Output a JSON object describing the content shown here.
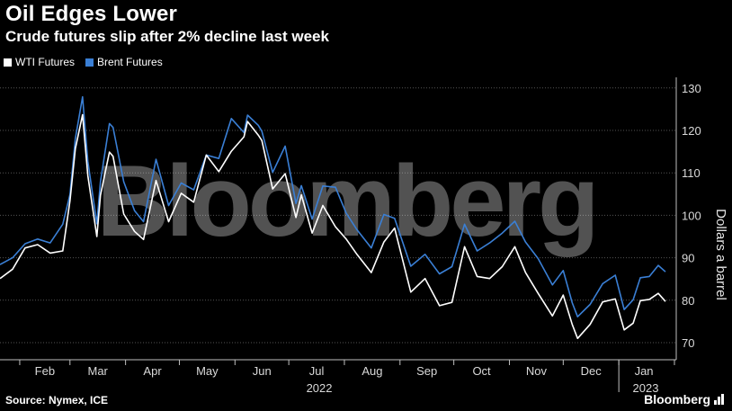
{
  "header": {
    "title": "Oil Edges Lower",
    "subtitle": "Crude futures slip after 2% decline last week"
  },
  "footer": {
    "source": "Source: Nymex, ICE",
    "brand": "Bloomberg"
  },
  "watermark": "Bloomberg",
  "colors": {
    "wti": "#ffffff",
    "brent": "#3a7fd5",
    "grid": "#555555",
    "axis_text": "#d9d9d9"
  },
  "chart_data": {
    "type": "line",
    "ylabel": "Dollars a barrel",
    "ylim": [
      65,
      132
    ],
    "yticks": [
      70,
      80,
      90,
      100,
      110,
      120,
      130
    ],
    "grid": true,
    "legend_position": "top-left",
    "x_months": [
      "Feb",
      "Mar",
      "Apr",
      "May",
      "Jun",
      "Jul",
      "Aug",
      "Sep",
      "Oct",
      "Nov",
      "Dec",
      "Jan"
    ],
    "x_years": [
      "2022",
      "2023"
    ],
    "x": [
      "2022-01-21",
      "2022-01-28",
      "2022-02-04",
      "2022-02-11",
      "2022-02-18",
      "2022-02-25",
      "2022-03-01",
      "2022-03-04",
      "2022-03-08",
      "2022-03-11",
      "2022-03-16",
      "2022-03-18",
      "2022-03-23",
      "2022-03-25",
      "2022-03-31",
      "2022-04-06",
      "2022-04-11",
      "2022-04-18",
      "2022-04-25",
      "2022-05-02",
      "2022-05-09",
      "2022-05-16",
      "2022-05-23",
      "2022-05-30",
      "2022-06-06",
      "2022-06-08",
      "2022-06-14",
      "2022-06-16",
      "2022-06-22",
      "2022-06-29",
      "2022-07-05",
      "2022-07-08",
      "2022-07-14",
      "2022-07-20",
      "2022-07-27",
      "2022-08-02",
      "2022-08-08",
      "2022-08-16",
      "2022-08-23",
      "2022-08-29",
      "2022-09-07",
      "2022-09-15",
      "2022-09-23",
      "2022-09-30",
      "2022-10-07",
      "2022-10-14",
      "2022-10-21",
      "2022-10-28",
      "2022-11-04",
      "2022-11-10",
      "2022-11-17",
      "2022-11-25",
      "2022-12-01",
      "2022-12-06",
      "2022-12-09",
      "2022-12-16",
      "2022-12-23",
      "2022-12-30",
      "2023-01-04",
      "2023-01-09",
      "2023-01-13",
      "2023-01-18",
      "2023-01-23",
      "2023-01-27"
    ],
    "series": [
      {
        "name": "WTI Futures",
        "color": "#ffffff",
        "values": [
          85.1,
          87.3,
          92.3,
          93.1,
          91.1,
          91.6,
          103.4,
          115.7,
          123.7,
          109.3,
          95.0,
          104.7,
          114.9,
          113.9,
          100.3,
          96.2,
          94.3,
          108.2,
          98.5,
          105.2,
          103.1,
          114.2,
          110.3,
          115.1,
          118.5,
          122.1,
          118.9,
          117.6,
          106.2,
          109.8,
          99.5,
          104.8,
          95.8,
          102.3,
          97.3,
          94.4,
          90.8,
          86.5,
          93.7,
          97.0,
          81.9,
          85.1,
          78.7,
          79.5,
          92.6,
          85.6,
          85.1,
          87.9,
          92.6,
          86.5,
          81.6,
          76.3,
          81.2,
          74.3,
          71.0,
          74.3,
          79.6,
          80.3,
          73.0,
          74.6,
          79.9,
          80.2,
          81.6,
          79.7
        ]
      },
      {
        "name": "Brent Futures",
        "color": "#3a7fd5",
        "values": [
          88.4,
          90.0,
          93.3,
          94.4,
          93.5,
          97.9,
          104.9,
          118.1,
          127.9,
          112.7,
          98.0,
          107.9,
          121.6,
          120.7,
          107.9,
          101.1,
          98.5,
          113.2,
          102.3,
          107.6,
          106.0,
          114.2,
          113.4,
          122.8,
          119.5,
          123.6,
          121.2,
          119.8,
          110.1,
          116.3,
          102.8,
          107.0,
          99.1,
          106.9,
          106.6,
          100.5,
          96.6,
          92.3,
          100.2,
          99.3,
          88.0,
          90.8,
          86.2,
          87.9,
          97.9,
          91.6,
          93.5,
          95.8,
          98.6,
          93.7,
          89.8,
          83.6,
          87.0,
          79.4,
          76.1,
          79.0,
          83.9,
          85.9,
          77.8,
          80.1,
          85.3,
          85.6,
          88.2,
          86.7
        ]
      }
    ]
  }
}
